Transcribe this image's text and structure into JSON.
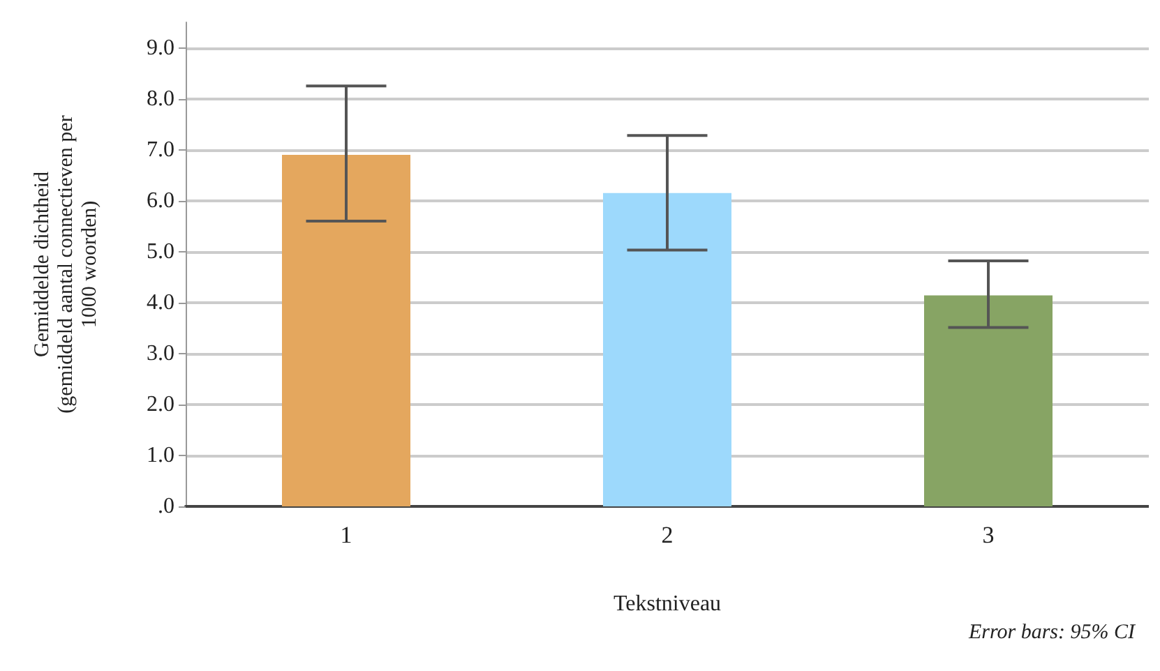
{
  "chart_data": {
    "type": "bar",
    "xlabel": "Tekstniveau",
    "ylabel": "Gemiddelde dichtheid\n(gemiddeld aantal connectieven per\n1000 woorden)",
    "categories": [
      "1",
      "2",
      "3"
    ],
    "values": [
      6.9,
      6.15,
      4.14
    ],
    "colors": [
      "#e4a75e",
      "#9dd9fc",
      "#87a464"
    ],
    "errors": [
      [
        5.6,
        8.25
      ],
      [
        5.03,
        7.28
      ],
      [
        3.51,
        4.82
      ]
    ],
    "ylim": [
      0,
      9.5
    ],
    "yticks": [
      {
        "value": 0,
        "label": ".0"
      },
      {
        "value": 1,
        "label": "1.0"
      },
      {
        "value": 2,
        "label": "2.0"
      },
      {
        "value": 3,
        "label": "3.0"
      },
      {
        "value": 4,
        "label": "4.0"
      },
      {
        "value": 5,
        "label": "5.0"
      },
      {
        "value": 6,
        "label": "6.0"
      },
      {
        "value": 7,
        "label": "7.0"
      },
      {
        "value": 8,
        "label": "8.0"
      },
      {
        "value": 9,
        "label": "9.0"
      }
    ],
    "grid": "y",
    "annotations": [
      "Error bars: 95% CI"
    ]
  }
}
